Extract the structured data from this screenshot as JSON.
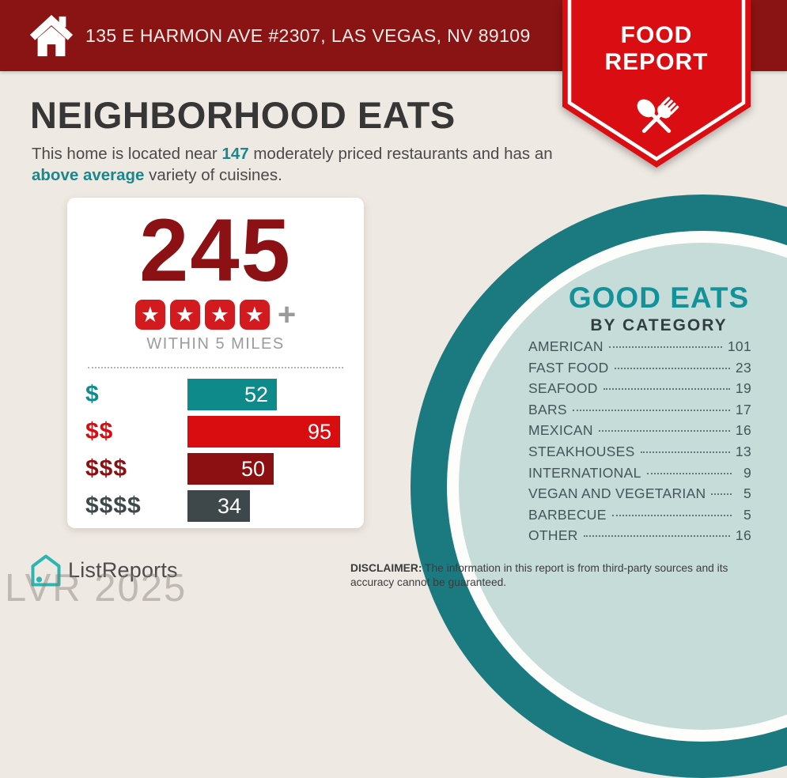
{
  "header": {
    "address": "135 E HARMON AVE #2307, LAS VEGAS, NV 89109",
    "badge": {
      "line1": "FOOD",
      "line2": "REPORT"
    }
  },
  "title": "NEIGHBORHOOD EATS",
  "subtitle": {
    "l1a": "This home is located near ",
    "l1num": "147",
    "l1b": " moderately priced restaurants and has an ",
    "l2hl": "above average",
    "l2b": " variety of cuisines."
  },
  "summary_card": {
    "total": "245",
    "stars": 4,
    "plus": "+",
    "radius_label": "WITHIN 5 MILES"
  },
  "chart_data": {
    "type": "bar",
    "title": "Restaurants by price tier within 5 miles",
    "categories": [
      "$",
      "$$",
      "$$$",
      "$$$$"
    ],
    "values": [
      52,
      95,
      50,
      34
    ],
    "bar_colors": [
      "#0E8A8A",
      "#D90D10",
      "#8C0F11",
      "#3E4749"
    ],
    "label_colors": [
      "#128B8B",
      "#D90D10",
      "#8C0F11",
      "#3E4749"
    ],
    "xlim": [
      0,
      95
    ],
    "orientation": "horizontal",
    "value_labels": "inside-right"
  },
  "good_eats": {
    "title": "GOOD EATS",
    "subtitle": "BY CATEGORY",
    "items": [
      {
        "label": "AMERICAN",
        "value": "101"
      },
      {
        "label": "FAST FOOD",
        "value": "23"
      },
      {
        "label": "SEAFOOD",
        "value": "19"
      },
      {
        "label": "BARS",
        "value": "17"
      },
      {
        "label": "MEXICAN",
        "value": "16"
      },
      {
        "label": "STEAKHOUSES",
        "value": "13"
      },
      {
        "label": "INTERNATIONAL",
        "value": "9"
      },
      {
        "label": "VEGAN AND VEGETARIAN",
        "value": "5"
      },
      {
        "label": "BARBECUE",
        "value": "5"
      },
      {
        "label": "OTHER",
        "value": "16"
      }
    ]
  },
  "footer": {
    "logo_text": "ListReports",
    "watermark": "LVR 2025",
    "disclaimer_label": "DISCLAIMER:",
    "disclaimer_text": " The information in this report is from third-party sources and its accuracy cannot be guaranteed."
  },
  "colors": {
    "header_red": "#8A1413",
    "ribbon_red": "#DA0E12",
    "number_red": "#8C1114",
    "star_red": "#D31A1F",
    "accent_teal": "#1B878C",
    "circle_ring_teal": "#1B7A80",
    "circle_fill_mint": "#C6DCD8",
    "background": "#EFE9E3"
  }
}
